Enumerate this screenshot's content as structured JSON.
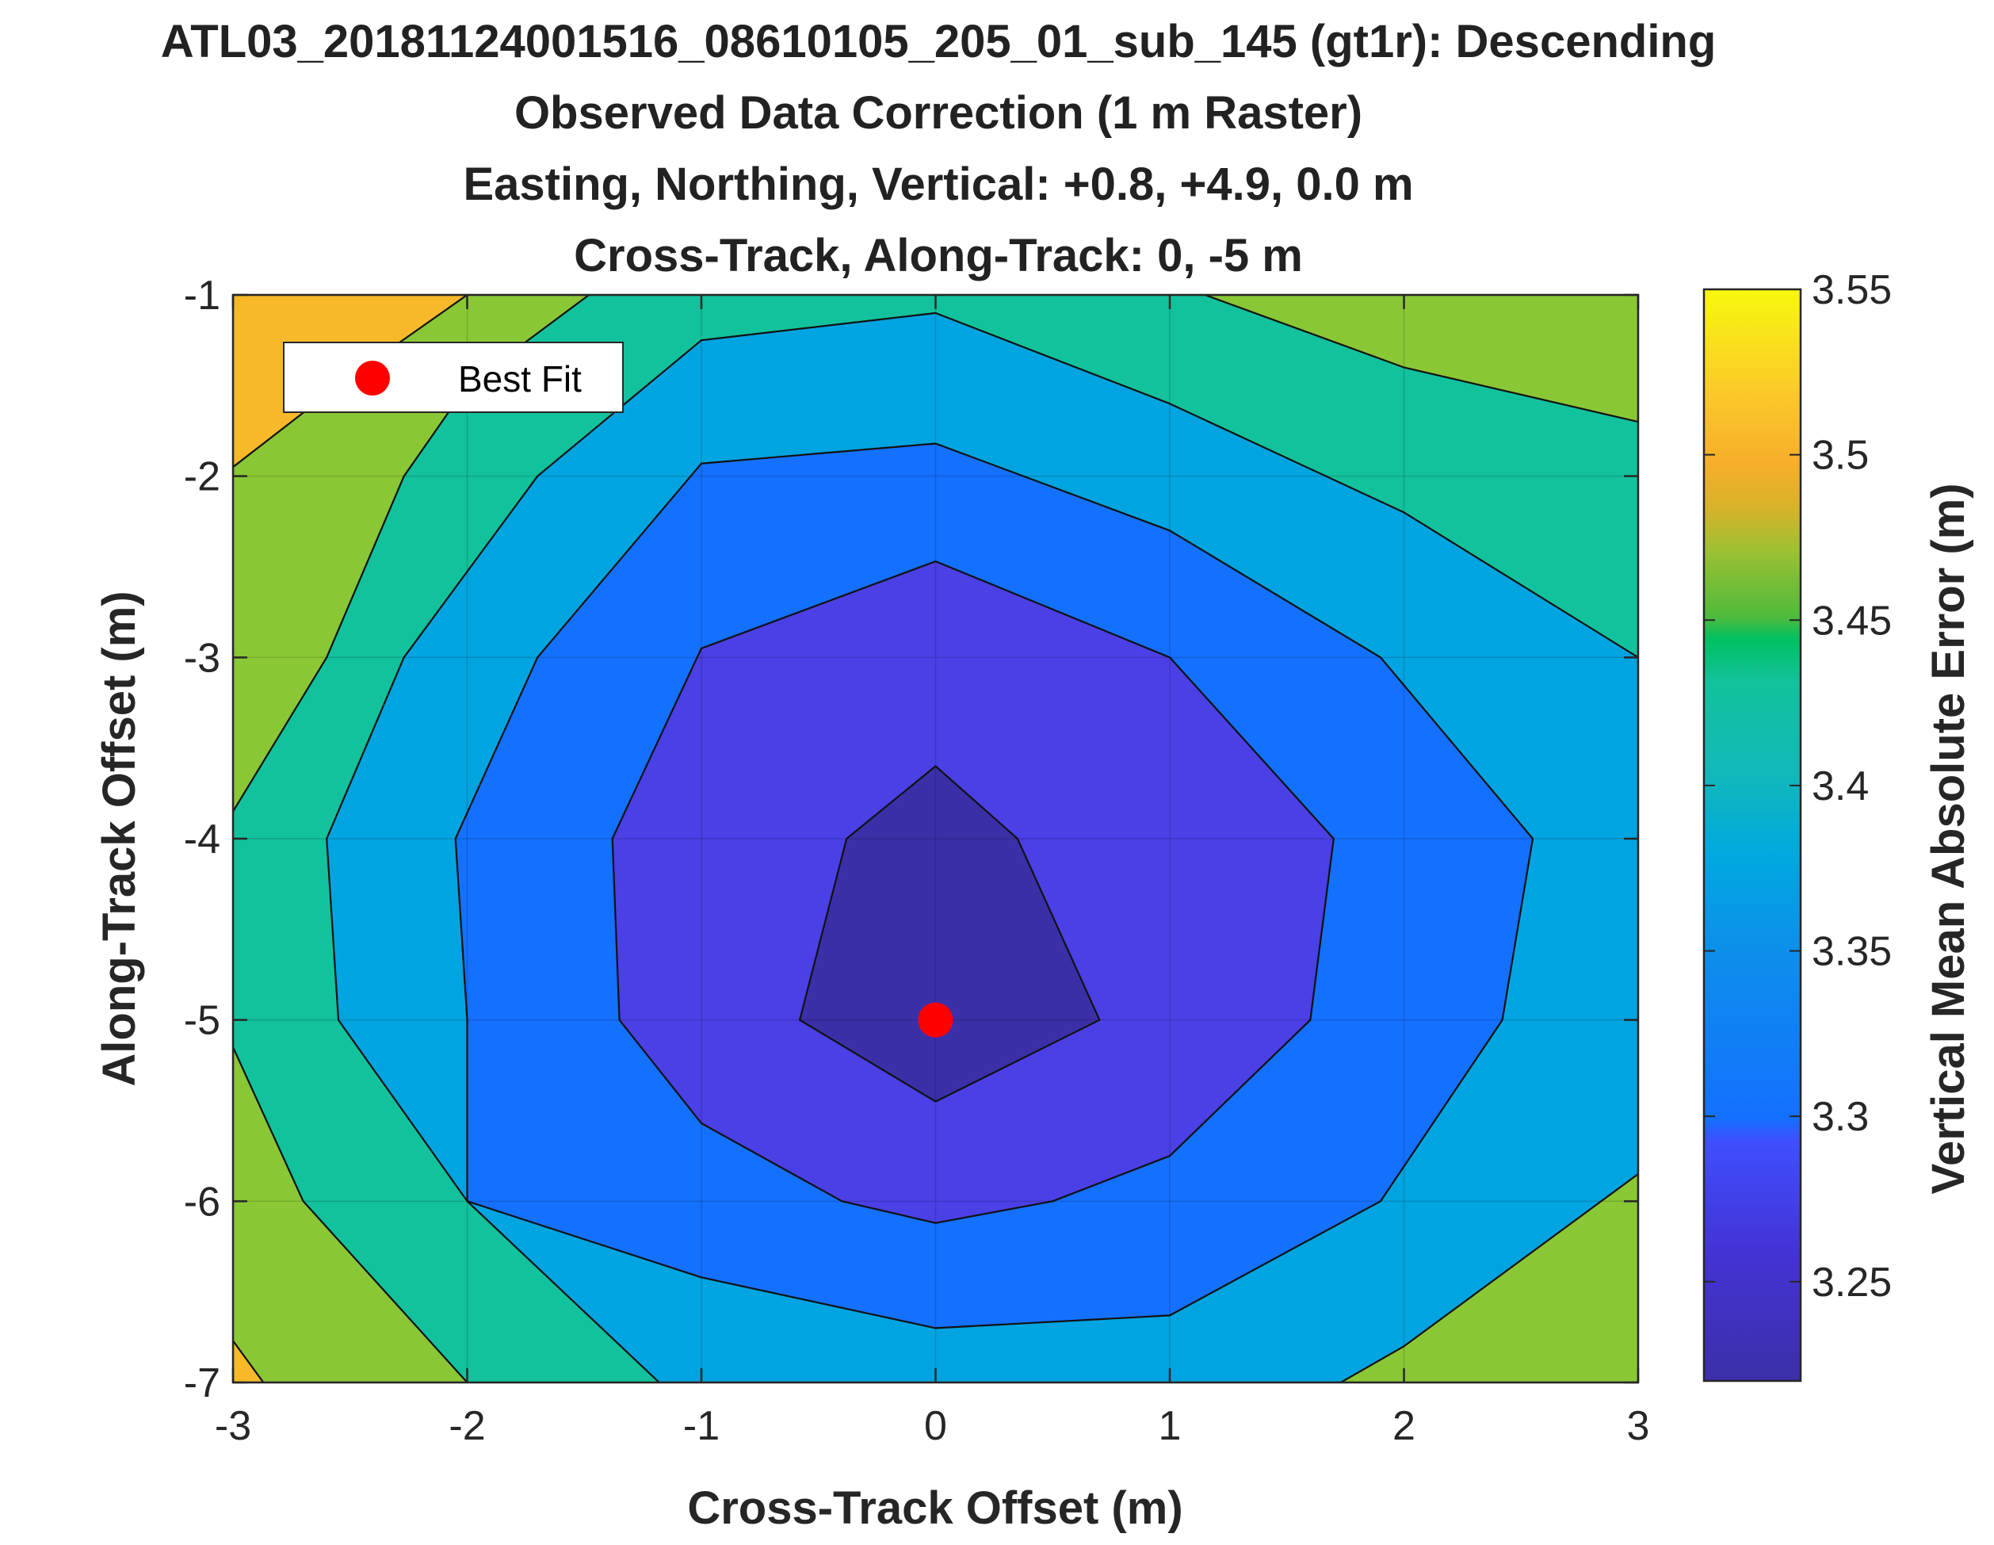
{
  "chart_data": {
    "type": "contour",
    "title_lines": [
      "ATL03_20181124001516_08610105_205_01_sub_145 (gt1r): Descending",
      "Observed Data Correction (1 m Raster)",
      "Easting, Northing, Vertical: +0.8, +4.9, 0.0 m",
      "Cross-Track, Along-Track: 0, -5 m"
    ],
    "xlabel": "Cross-Track Offset (m)",
    "ylabel": "Along-Track Offset (m)",
    "colorbar_label": "Vertical Mean Absolute Error (m)",
    "xlim": [
      -3,
      3
    ],
    "ylim": [
      -7,
      -1
    ],
    "xticks": [
      "-3",
      "-2",
      "-1",
      "0",
      "1",
      "2",
      "3"
    ],
    "yticks": [
      "-1",
      "-2",
      "-3",
      "-4",
      "-5",
      "-6",
      "-7"
    ],
    "colorbar_range": [
      3.22,
      3.55
    ],
    "colorbar_ticks": [
      "3.55",
      "3.5",
      "3.45",
      "3.4",
      "3.35",
      "3.3",
      "3.25"
    ],
    "legend": {
      "label": "Best Fit",
      "position": "top-left"
    },
    "best_fit": {
      "x": 0,
      "y": -5
    },
    "grid": true,
    "contour_fills": [
      {
        "level": 3.22,
        "color": "#3b2fa8"
      },
      {
        "level": 3.25,
        "color": "#4a40e6"
      },
      {
        "level": 3.3,
        "color": "#1470ff"
      },
      {
        "level": 3.35,
        "color": "#00a4e0"
      },
      {
        "level": 3.4,
        "color": "#12c29c"
      },
      {
        "level": 3.45,
        "color": "#8ac735"
      },
      {
        "level": 3.5,
        "color": "#f7b92a"
      }
    ],
    "contour_regions": [
      {
        "level": 3.45,
        "points": [
          [
            -3,
            -7
          ],
          [
            -3,
            -1
          ],
          [
            3,
            -1
          ],
          [
            3,
            -7
          ]
        ]
      },
      {
        "level": 3.4,
        "points": [
          [
            -1.48,
            -1
          ],
          [
            -2.0,
            -1.5
          ],
          [
            -2.27,
            -2.0
          ],
          [
            -2.6,
            -3.0
          ],
          [
            -3,
            -3.85
          ],
          [
            -3,
            -5.15
          ],
          [
            -2.7,
            -6.0
          ],
          [
            -2.0,
            -7
          ],
          [
            1.73,
            -7
          ],
          [
            3,
            -5.85
          ],
          [
            3,
            -1.7
          ],
          [
            2.0,
            -1.4
          ],
          [
            1.15,
            -1
          ]
        ]
      },
      {
        "level": 3.35,
        "points": [
          [
            -1.0,
            -1.25
          ],
          [
            0,
            -1.1
          ],
          [
            1.0,
            -1.6
          ],
          [
            2.0,
            -2.2
          ],
          [
            3,
            -3.0
          ],
          [
            3,
            -5.85
          ],
          [
            2.0,
            -6.8
          ],
          [
            1.73,
            -7
          ],
          [
            -1.18,
            -7
          ],
          [
            -2.0,
            -6.0
          ],
          [
            -2.55,
            -5.0
          ],
          [
            -2.6,
            -4.0
          ],
          [
            -2.27,
            -3.0
          ],
          [
            -1.7,
            -2.0
          ]
        ]
      },
      {
        "level": 3.3,
        "points": [
          [
            -1.0,
            -1.93
          ],
          [
            0,
            -1.82
          ],
          [
            1.0,
            -2.3
          ],
          [
            1.9,
            -3.0
          ],
          [
            2.55,
            -4.0
          ],
          [
            2.42,
            -5.0
          ],
          [
            1.9,
            -6.0
          ],
          [
            1.0,
            -6.63
          ],
          [
            0,
            -6.7
          ],
          [
            -1.0,
            -6.42
          ],
          [
            -2.0,
            -6.0
          ],
          [
            -2.0,
            -5.0
          ],
          [
            -2.05,
            -4.0
          ],
          [
            -1.7,
            -3.0
          ]
        ]
      },
      {
        "level": 3.25,
        "points": [
          [
            -1.0,
            -2.95
          ],
          [
            0,
            -2.47
          ],
          [
            1.0,
            -3.0
          ],
          [
            1.7,
            -4.0
          ],
          [
            1.6,
            -5.0
          ],
          [
            1.0,
            -5.75
          ],
          [
            0.5,
            -6.0
          ],
          [
            0,
            -6.12
          ],
          [
            -0.4,
            -6.0
          ],
          [
            -1.0,
            -5.57
          ],
          [
            -1.35,
            -5.0
          ],
          [
            -1.38,
            -4.0
          ]
        ]
      },
      {
        "level": 3.22,
        "points": [
          [
            -0.38,
            -4.0
          ],
          [
            0,
            -3.6
          ],
          [
            0.35,
            -4.0
          ],
          [
            0.7,
            -5.0
          ],
          [
            0,
            -5.45
          ],
          [
            -0.58,
            -5.0
          ]
        ]
      },
      {
        "level": 3.5,
        "points": [
          [
            -3,
            -1
          ],
          [
            -2.0,
            -1
          ],
          [
            -2.55,
            -1.5
          ],
          [
            -3,
            -1.95
          ]
        ]
      },
      {
        "level": 3.5,
        "points": [
          [
            -3,
            -6.77
          ],
          [
            -2.87,
            -7
          ],
          [
            -3,
            -7
          ]
        ]
      }
    ]
  }
}
